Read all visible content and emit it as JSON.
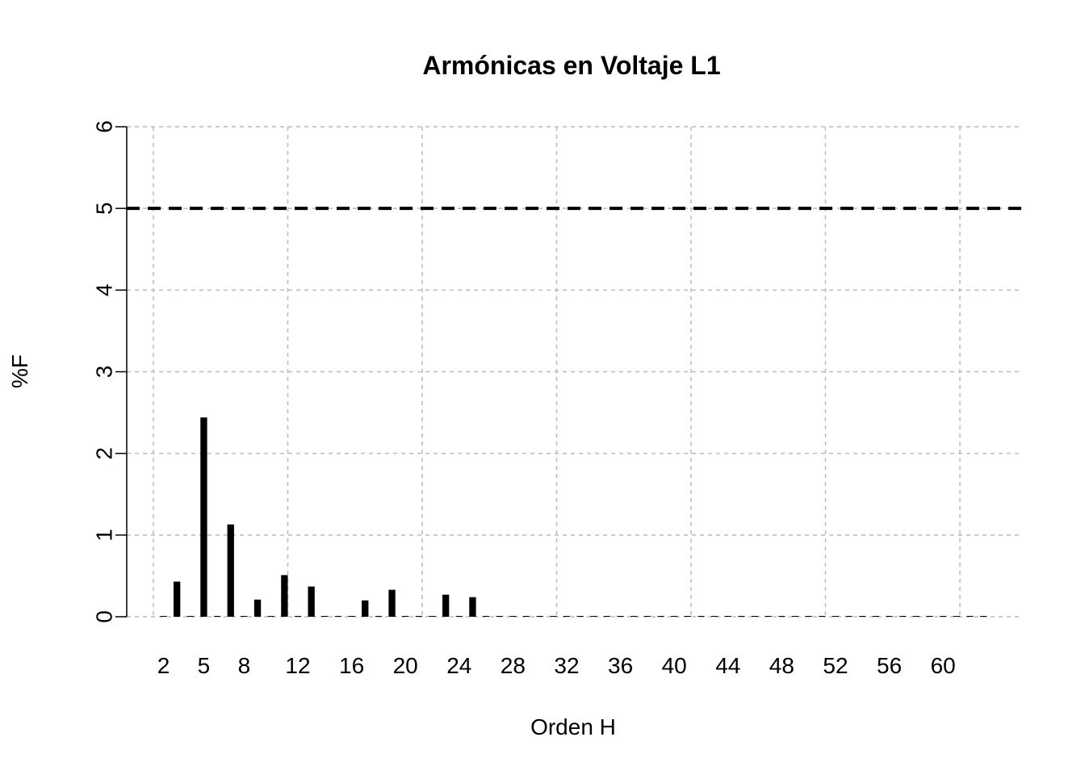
{
  "chart_data": {
    "type": "bar",
    "title": "Armónicas en Voltaje L1",
    "x_label": "Orden H",
    "y_label": "%F",
    "categories": [
      "2",
      null,
      null,
      "5",
      null,
      null,
      "8",
      null,
      null,
      null,
      "12",
      null,
      null,
      null,
      "16",
      null,
      null,
      null,
      "20",
      null,
      null,
      null,
      "24",
      null,
      null,
      null,
      "28",
      null,
      null,
      null,
      "32",
      null,
      null,
      null,
      "36",
      null,
      null,
      null,
      "40",
      null,
      null,
      null,
      "44",
      null,
      null,
      null,
      "48",
      null,
      null,
      null,
      "52",
      null,
      null,
      null,
      "56",
      null,
      null,
      null,
      "60",
      null,
      null,
      null
    ],
    "values": [
      0.01,
      0.43,
      0.01,
      2.44,
      0.01,
      1.13,
      0.01,
      0.21,
      0.01,
      0.51,
      0.01,
      0.37,
      0.01,
      0.01,
      0.01,
      0.2,
      0.01,
      0.33,
      0.01,
      0.01,
      0.01,
      0.27,
      0.01,
      0.24,
      0.01,
      0.01,
      0.01,
      0.01,
      0.01,
      0.01,
      0.01,
      0.01,
      0.01,
      0.01,
      0.01,
      0.01,
      0.01,
      0.01,
      0.01,
      0.01,
      0.01,
      0.01,
      0.01,
      0.01,
      0.01,
      0.01,
      0.01,
      0.01,
      0.01,
      0.01,
      0.01,
      0.01,
      0.01,
      0.01,
      0.01,
      0.01,
      0.01,
      0.01,
      0.01,
      0.01,
      0.01,
      0.01
    ],
    "color": "#000000",
    "ylim": [
      0,
      6
    ],
    "yticks": [
      0,
      1,
      2,
      3,
      4,
      5,
      6
    ],
    "grid": true,
    "reference_line": 5
  }
}
